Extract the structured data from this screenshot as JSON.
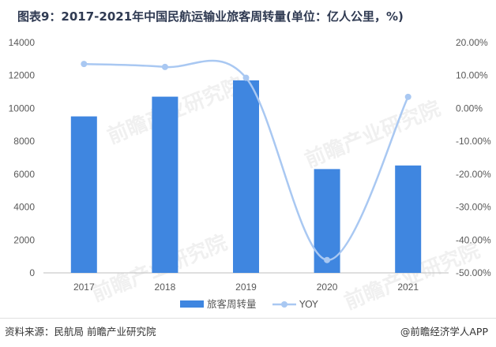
{
  "title": "图表9：2017-2021年中国民航运输业旅客周转量(单位：亿人公里，%)",
  "footer": {
    "source": "资料来源：民航局 前瞻产业研究院",
    "brand": "@前瞻经济学人APP"
  },
  "watermark": "前瞻产业研究院",
  "colors": {
    "bar": "#3f86e0",
    "line": "#a9c8f2",
    "axis": "#bfbfbf"
  },
  "chart_data": {
    "type": "bar",
    "categories": [
      "2017",
      "2018",
      "2019",
      "2020",
      "2021"
    ],
    "series": [
      {
        "name": "旅客周转量",
        "type": "bar",
        "axis": "left",
        "values": [
          9513,
          10712,
          11705,
          6311,
          6529
        ]
      },
      {
        "name": "YOY",
        "type": "line",
        "axis": "right",
        "smooth": true,
        "values": [
          13.5,
          12.6,
          9.3,
          -46.1,
          3.5
        ]
      }
    ],
    "y_left": {
      "min": 0,
      "max": 14000,
      "step": 2000,
      "ticks": [
        "0",
        "2000",
        "4000",
        "6000",
        "8000",
        "10000",
        "12000",
        "14000"
      ]
    },
    "y_right": {
      "min": -50,
      "max": 20,
      "step": 10,
      "ticks": [
        "-50.00%",
        "-40.00%",
        "-30.00%",
        "-20.00%",
        "-10.00%",
        "0.00%",
        "10.00%",
        "20.00%"
      ]
    },
    "legend": {
      "position": "bottom",
      "items": [
        "旅客周转量",
        "YOY"
      ]
    },
    "grid": false
  }
}
